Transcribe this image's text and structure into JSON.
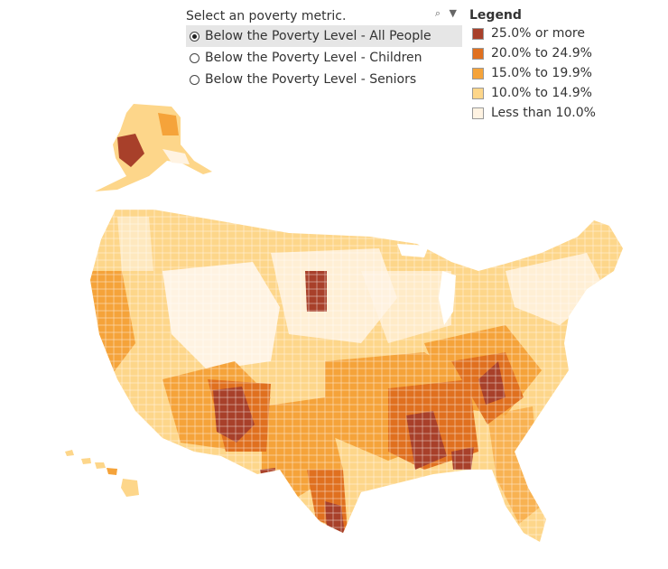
{
  "metric_selector": {
    "title": "Select an poverty metric.",
    "search_icon": "search-icon",
    "dropdown_icon": "caret-down-icon",
    "options": [
      {
        "label": "Below the Poverty Level - All People",
        "selected": true
      },
      {
        "label": "Below the Poverty Level - Children",
        "selected": false
      },
      {
        "label": "Below the Poverty Level - Seniors",
        "selected": false
      }
    ]
  },
  "legend": {
    "title": "Legend",
    "items": [
      {
        "label": "25.0% or more",
        "color": "#a8402a"
      },
      {
        "label": "20.0% to 24.9%",
        "color": "#e0701f"
      },
      {
        "label": "15.0% to 19.9%",
        "color": "#f5a33a"
      },
      {
        "label": "10.0% to 14.9%",
        "color": "#fdd68a"
      },
      {
        "label": "Less than 10.0%",
        "color": "#fff3e2"
      }
    ]
  }
}
